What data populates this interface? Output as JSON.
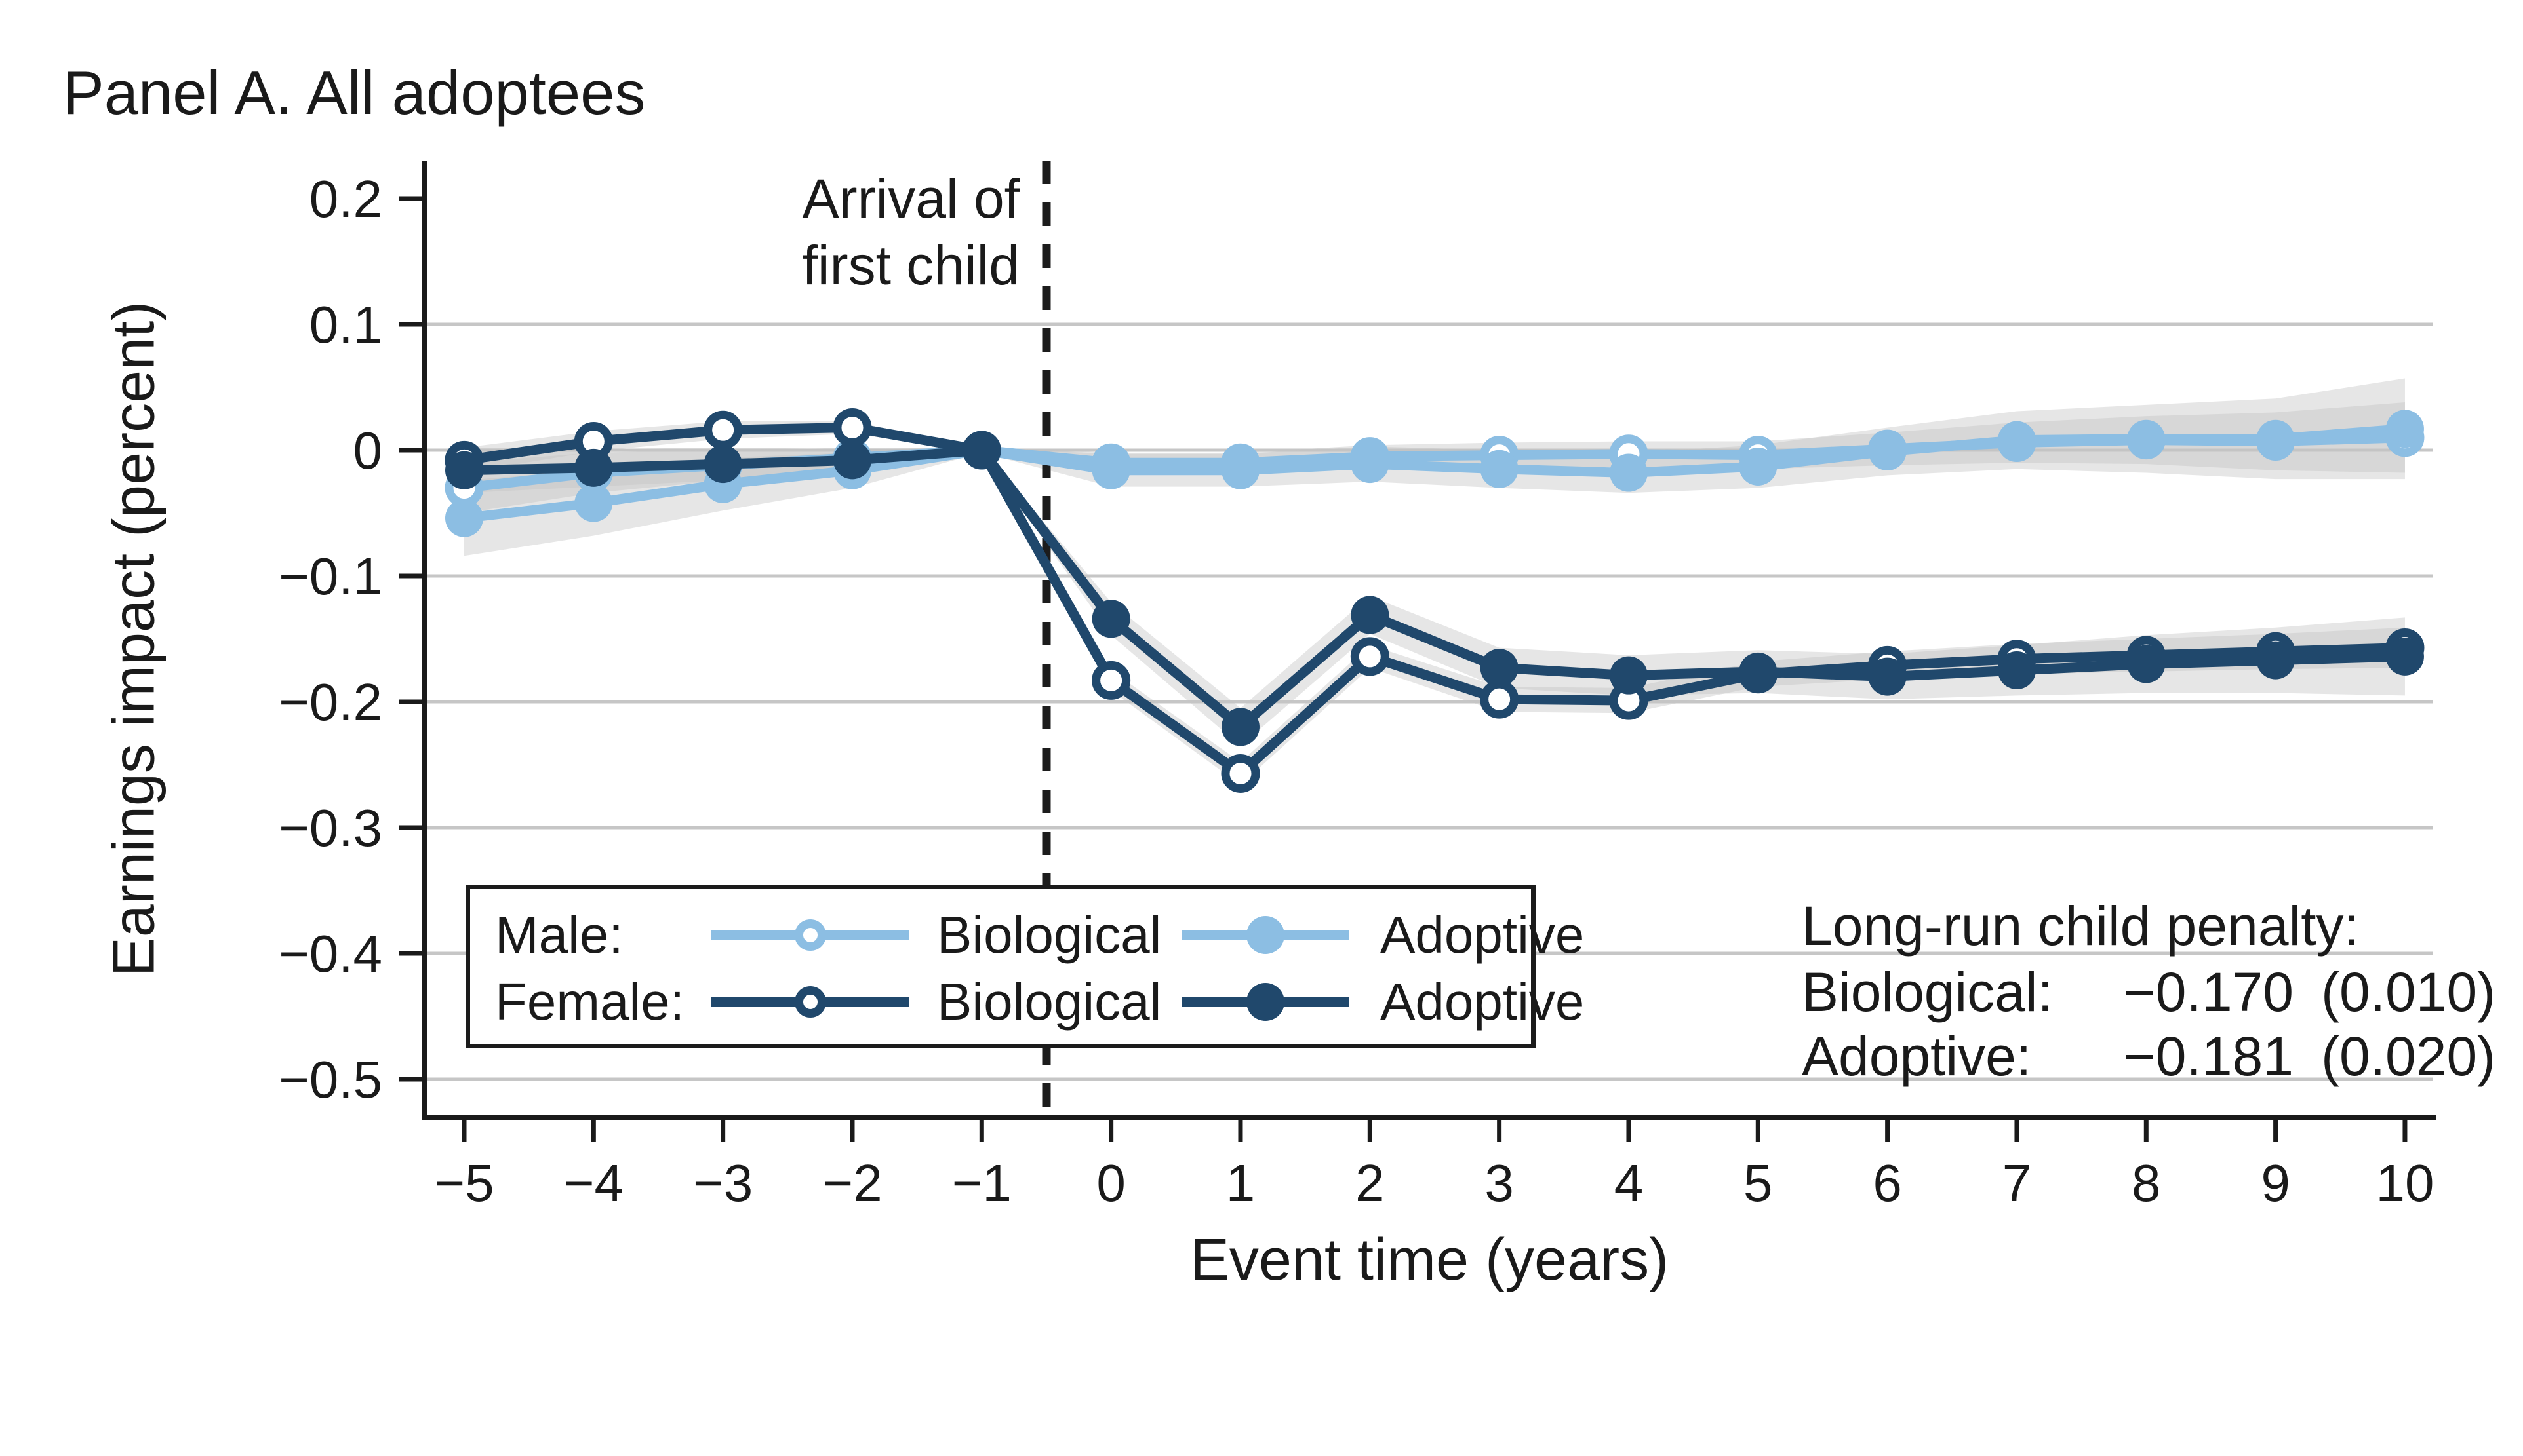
{
  "panel_title": "Panel A. All adoptees",
  "y_axis": {
    "title": "Earnings impact (percent)",
    "ticks": [
      {
        "v": 0.2,
        "label": "0.2"
      },
      {
        "v": 0.1,
        "label": "0.1"
      },
      {
        "v": 0,
        "label": "0"
      },
      {
        "v": -0.1,
        "label": "−0.1"
      },
      {
        "v": -0.2,
        "label": "−0.2"
      },
      {
        "v": -0.3,
        "label": "−0.3"
      },
      {
        "v": -0.4,
        "label": "−0.4"
      },
      {
        "v": -0.5,
        "label": "−0.5"
      }
    ]
  },
  "x_axis": {
    "title": "Event time (years)",
    "ticks": [
      {
        "v": -5,
        "label": "−5"
      },
      {
        "v": -4,
        "label": "−4"
      },
      {
        "v": -3,
        "label": "−3"
      },
      {
        "v": -2,
        "label": "−2"
      },
      {
        "v": -1,
        "label": "−1"
      },
      {
        "v": 0,
        "label": "0"
      },
      {
        "v": 1,
        "label": "1"
      },
      {
        "v": 2,
        "label": "2"
      },
      {
        "v": 3,
        "label": "3"
      },
      {
        "v": 4,
        "label": "4"
      },
      {
        "v": 5,
        "label": "5"
      },
      {
        "v": 6,
        "label": "6"
      },
      {
        "v": 7,
        "label": "7"
      },
      {
        "v": 8,
        "label": "8"
      },
      {
        "v": 9,
        "label": "9"
      },
      {
        "v": 10,
        "label": "10"
      }
    ]
  },
  "annotation_line": {
    "line1": "Arrival of",
    "line2": "first child"
  },
  "legend": {
    "rows": [
      {
        "group": "Male:",
        "items": [
          {
            "label": "Biological",
            "marker": "open",
            "color_key": "light_blue"
          },
          {
            "label": "Adoptive",
            "marker": "filled",
            "color_key": "light_blue"
          }
        ]
      },
      {
        "group": "Female:",
        "items": [
          {
            "label": "Biological",
            "marker": "open",
            "color_key": "navy"
          },
          {
            "label": "Adoptive",
            "marker": "filled",
            "color_key": "navy"
          }
        ]
      }
    ]
  },
  "stats": {
    "title": "Long-run child penalty:",
    "rows": [
      {
        "label": "Biological:",
        "value": "−0.170",
        "se": "(0.010)"
      },
      {
        "label": "Adoptive:",
        "value": "−0.181",
        "se": "(0.020)"
      }
    ]
  },
  "colors": {
    "navy": "#20486c",
    "light_blue": "#8cbee3",
    "gridline": "#c6c6c6",
    "axis": "#1a1a1a",
    "text": "#1a1a1a",
    "band": "#c4c4c4",
    "event_line": "#1c1c1c"
  },
  "chart_data": {
    "type": "line",
    "title": "Panel A. All adoptees",
    "xlabel": "Event time (years)",
    "ylabel": "Earnings impact (percent)",
    "x": [
      -5,
      -4,
      -3,
      -2,
      -1,
      0,
      1,
      2,
      3,
      4,
      5,
      6,
      7,
      8,
      9,
      10
    ],
    "ylim": [
      -0.53,
      0.23
    ],
    "xlim": [
      -5.3,
      10.2
    ],
    "y_gridlines": [
      0.1,
      0,
      -0.1,
      -0.2,
      -0.3,
      -0.4,
      -0.5
    ],
    "event_line_x": -0.5,
    "grid": true,
    "legend_position": "lower-left-box",
    "series": [
      {
        "name": "Male: Biological",
        "color_key": "light_blue",
        "marker": "open",
        "values": [
          -0.03,
          -0.018,
          -0.012,
          -0.006,
          0,
          -0.01,
          -0.01,
          -0.005,
          -0.004,
          -0.003,
          -0.004,
          0.001,
          0.006,
          0.008,
          0.007,
          0.01
        ],
        "ci": [
          0.02,
          0.016,
          0.012,
          0.008,
          0.002,
          0.008,
          0.008,
          0.009,
          0.01,
          0.01,
          0.011,
          0.013,
          0.016,
          0.019,
          0.023,
          0.028
        ]
      },
      {
        "name": "Male: Adoptive",
        "color_key": "light_blue",
        "marker": "filled",
        "values": [
          -0.054,
          -0.042,
          -0.027,
          -0.016,
          0,
          -0.016,
          -0.016,
          -0.011,
          -0.015,
          -0.018,
          -0.013,
          -0.001,
          0.008,
          0.009,
          0.009,
          0.017
        ],
        "ci": [
          0.03,
          0.026,
          0.021,
          0.014,
          0.002,
          0.013,
          0.013,
          0.014,
          0.015,
          0.016,
          0.017,
          0.019,
          0.023,
          0.027,
          0.032,
          0.04
        ]
      },
      {
        "name": "Female: Biological",
        "color_key": "navy",
        "marker": "open",
        "values": [
          -0.008,
          0.007,
          0.016,
          0.018,
          0,
          -0.183,
          -0.257,
          -0.164,
          -0.198,
          -0.199,
          -0.178,
          -0.171,
          -0.166,
          -0.163,
          -0.16,
          -0.157
        ],
        "ci": [
          0.01,
          0.008,
          0.007,
          0.005,
          0.001,
          0.008,
          0.009,
          0.009,
          0.01,
          0.01,
          0.01,
          0.011,
          0.012,
          0.013,
          0.014,
          0.016
        ]
      },
      {
        "name": "Female: Adoptive",
        "color_key": "navy",
        "marker": "filled",
        "values": [
          -0.016,
          -0.014,
          -0.011,
          -0.008,
          0,
          -0.134,
          -0.22,
          -0.131,
          -0.173,
          -0.179,
          -0.176,
          -0.18,
          -0.175,
          -0.17,
          -0.167,
          -0.164
        ],
        "ci": [
          0.018,
          0.015,
          0.013,
          0.009,
          0.002,
          0.013,
          0.015,
          0.015,
          0.016,
          0.016,
          0.017,
          0.018,
          0.02,
          0.023,
          0.026,
          0.031
        ]
      }
    ]
  }
}
